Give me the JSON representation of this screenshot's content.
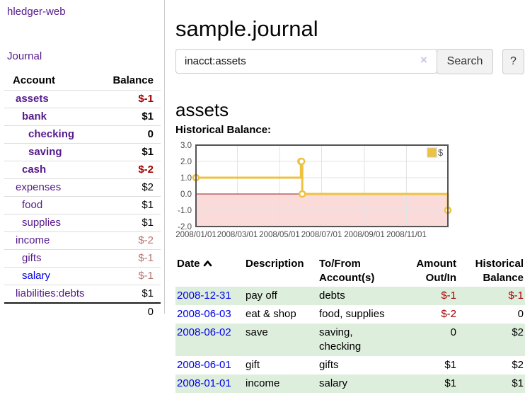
{
  "app": {
    "brand": "hledger-web"
  },
  "sidebar": {
    "journal_link": "Journal",
    "accounts_header": {
      "account": "Account",
      "balance": "Balance"
    },
    "accounts": [
      {
        "name": "assets",
        "balance": "$-1"
      },
      {
        "name": "bank",
        "balance": "$1"
      },
      {
        "name": "checking",
        "balance": "0"
      },
      {
        "name": "saving",
        "balance": "$1"
      },
      {
        "name": "cash",
        "balance": "$-2"
      },
      {
        "name": "expenses",
        "balance": "$2"
      },
      {
        "name": "food",
        "balance": "$1"
      },
      {
        "name": "supplies",
        "balance": "$1"
      },
      {
        "name": "income",
        "balance": "$-2"
      },
      {
        "name": "gifts",
        "balance": "$-1"
      },
      {
        "name": "salary",
        "balance": "$-1"
      },
      {
        "name": "liabilities:debts",
        "balance": "$1"
      }
    ],
    "total": "0"
  },
  "header": {
    "title": "sample.journal"
  },
  "search": {
    "value": "inacct:assets",
    "clear_icon": "×",
    "button_label": "Search",
    "help_label": "?"
  },
  "account_page": {
    "title": "assets",
    "chart_label": "Historical Balance:"
  },
  "chart_data": {
    "type": "line",
    "title": "Historical Balance:",
    "series": [
      {
        "name": "$",
        "color": "#EDC240",
        "steps": true,
        "points": [
          {
            "date": "2008/01/01",
            "x": 0,
            "y": 1
          },
          {
            "date": "2008/06/01",
            "x": 152,
            "y": 2
          },
          {
            "date": "2008/06/02",
            "x": 153,
            "y": 2
          },
          {
            "date": "2008/06/03",
            "x": 154,
            "y": 0
          },
          {
            "date": "2008/12/31",
            "x": 365,
            "y": -1
          }
        ]
      }
    ],
    "xticks": [
      {
        "label": "2008/01/01",
        "x": 0
      },
      {
        "label": "2008/03/01",
        "x": 60
      },
      {
        "label": "2008/05/01",
        "x": 121
      },
      {
        "label": "2008/07/01",
        "x": 182
      },
      {
        "label": "2008/09/01",
        "x": 244
      },
      {
        "label": "2008/11/01",
        "x": 305
      }
    ],
    "yticks": [
      3.0,
      2.0,
      1.0,
      0.0,
      -1.0,
      -2.0
    ],
    "xlim": [
      0,
      365
    ],
    "ylim": [
      -2,
      3
    ],
    "grid": true,
    "legend_position": "top-right",
    "colors": {
      "negative_region": "#fbdada",
      "zero_line": "#991f1f",
      "gridline": "#e3e3e3",
      "border": "#545454",
      "tick_label": "#4a4a4a"
    }
  },
  "register": {
    "columns": [
      "Date",
      "Description",
      "To/From Account(s)",
      "Amount Out/In",
      "Historical Balance"
    ],
    "rows": [
      {
        "date": "2008-12-31",
        "description": "pay off",
        "accounts": "debts",
        "amount": "$-1",
        "balance": "$-1"
      },
      {
        "date": "2008-06-03",
        "description": "eat & shop",
        "accounts": "food, supplies",
        "amount": "$-2",
        "balance": "0"
      },
      {
        "date": "2008-06-02",
        "description": "save",
        "accounts": "saving, checking",
        "amount": "0",
        "balance": "$2"
      },
      {
        "date": "2008-06-01",
        "description": "gift",
        "accounts": "gifts",
        "amount": "$1",
        "balance": "$2"
      },
      {
        "date": "2008-01-01",
        "description": "income",
        "accounts": "salary",
        "amount": "$1",
        "balance": "$1"
      }
    ]
  }
}
